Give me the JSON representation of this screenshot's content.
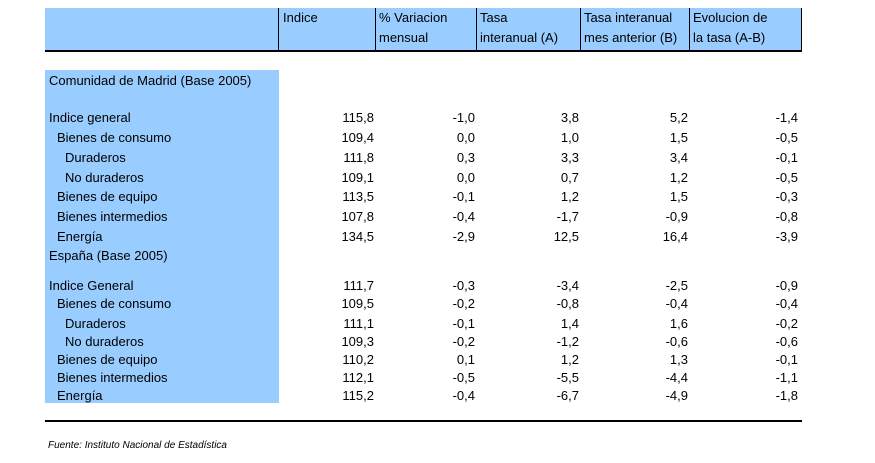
{
  "header": {
    "col1": "Indice",
    "col2a": "% Variacion",
    "col2b": "mensual",
    "col3a": "Tasa",
    "col3b": "interanual (A)",
    "col4a": "Tasa interanual",
    "col4b": "mes anterior (B)",
    "col5a": "Evolucion de",
    "col5b": "la tasa (A-B)"
  },
  "section1": {
    "title": "Comunidad de Madrid (Base 2005)",
    "rows": [
      {
        "label": "Indice general",
        "v1": "115,8",
        "v2": "-1,0",
        "v3": "3,8",
        "v4": "5,2",
        "v5": "-1,4"
      },
      {
        "label": "Bienes de consumo",
        "v1": "109,4",
        "v2": "0,0",
        "v3": "1,0",
        "v4": "1,5",
        "v5": "-0,5"
      },
      {
        "label": "Duraderos",
        "v1": "111,8",
        "v2": "0,3",
        "v3": "3,3",
        "v4": "3,4",
        "v5": "-0,1"
      },
      {
        "label": "No duraderos",
        "v1": "109,1",
        "v2": "0,0",
        "v3": "0,7",
        "v4": "1,2",
        "v5": "-0,5"
      },
      {
        "label": "Bienes de equipo",
        "v1": "113,5",
        "v2": "-0,1",
        "v3": "1,2",
        "v4": "1,5",
        "v5": "-0,3"
      },
      {
        "label": "Bienes intermedios",
        "v1": "107,8",
        "v2": "-0,4",
        "v3": "-1,7",
        "v4": "-0,9",
        "v5": "-0,8"
      },
      {
        "label": "Energía",
        "v1": "134,5",
        "v2": "-2,9",
        "v3": "12,5",
        "v4": "16,4",
        "v5": "-3,9"
      }
    ]
  },
  "section2": {
    "title": "España (Base 2005)",
    "rows": [
      {
        "label": "Indice General",
        "v1": "111,7",
        "v2": "-0,3",
        "v3": "-3,4",
        "v4": "-2,5",
        "v5": "-0,9"
      },
      {
        "label": "Bienes de consumo",
        "v1": "109,5",
        "v2": "-0,2",
        "v3": "-0,8",
        "v4": "-0,4",
        "v5": "-0,4"
      },
      {
        "label": "Duraderos",
        "v1": "111,1",
        "v2": "-0,1",
        "v3": "1,4",
        "v4": "1,6",
        "v5": "-0,2"
      },
      {
        "label": "No duraderos",
        "v1": "109,3",
        "v2": "-0,2",
        "v3": "-1,2",
        "v4": "-0,6",
        "v5": "-0,6"
      },
      {
        "label": "Bienes de equipo",
        "v1": "110,2",
        "v2": "0,1",
        "v3": "1,2",
        "v4": "1,3",
        "v5": "-0,1"
      },
      {
        "label": "Bienes intermedios",
        "v1": "112,1",
        "v2": "-0,5",
        "v3": "-5,5",
        "v4": "-4,4",
        "v5": "-1,1"
      },
      {
        "label": "Energía",
        "v1": "115,2",
        "v2": "-0,4",
        "v3": "-6,7",
        "v4": "-4,9",
        "v5": "-1,8"
      }
    ]
  },
  "source": "Fuente: Instituto Nacional de Estadística"
}
